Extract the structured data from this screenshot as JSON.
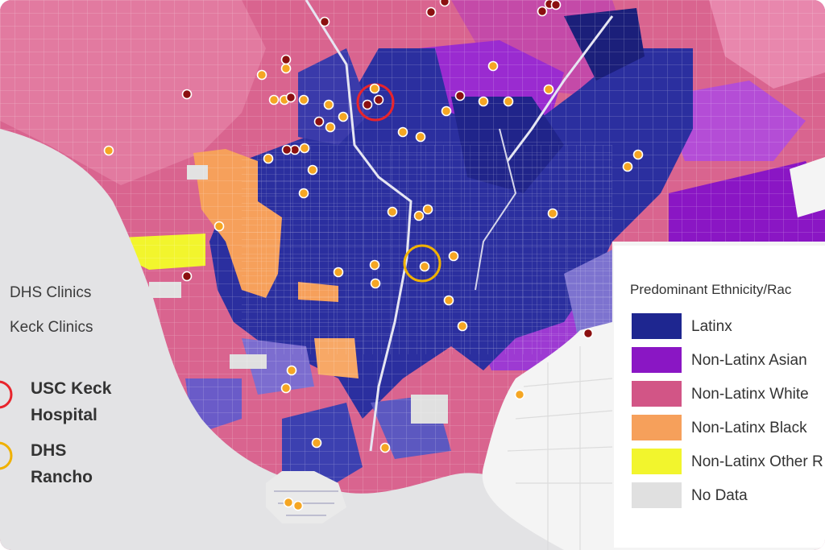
{
  "legend_left": {
    "dhs_clinics": "DHS Clinics",
    "keck_clinics": "Keck Clinics",
    "usc_keck_line1": "USC Keck",
    "usc_keck_line2": "Hospital",
    "dhs_rancho_line1": "DHS",
    "dhs_rancho_line2": "Rancho"
  },
  "legend_right": {
    "title": "Predominant Ethnicity/Rac",
    "items": [
      {
        "label": "Latinx",
        "color": "#1e2690"
      },
      {
        "label": "Non-Latinx Asian",
        "color": "#8a16c4"
      },
      {
        "label": "Non-Latinx White",
        "color": "#d25586"
      },
      {
        "label": "Non-Latinx Black",
        "color": "#f6a05b"
      },
      {
        "label": "Non-Latinx Other R",
        "color": "#f2f52d"
      },
      {
        "label": "No Data",
        "color": "#e0e0e0"
      }
    ]
  },
  "markers": {
    "dhs_color": "#f5a623",
    "keck_color": "#8b1010",
    "usc_circle_color": "#e8242c",
    "rancho_circle_color": "#f0b100"
  }
}
